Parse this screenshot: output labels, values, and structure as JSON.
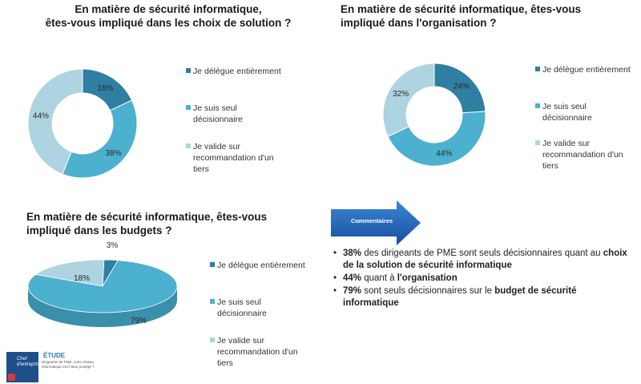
{
  "charts": {
    "c1": {
      "title_lines": [
        "En matière de sécurité informatique,",
        "êtes-vous impliqué dans les choix de solution ?"
      ],
      "legend": [
        "Je délègue entièrement",
        "Je suis seul décisionnaire",
        "Je valide sur recommandation d'un tiers"
      ]
    },
    "c2": {
      "title_lines": [
        "En matière de sécurité informatique, êtes-vous",
        "impliqué dans l'organisation ?"
      ],
      "legend": [
        "Je délègue entièrement",
        "Je suis seul décisionnaire",
        "Je valide sur recommandation d'un tiers"
      ]
    },
    "c3": {
      "title_lines": [
        "En matière de sécurité informatique, êtes-vous",
        "impliqué dans les budgets ?"
      ],
      "legend": [
        "Je délègue entièrement",
        "Je suis seul décisionnaire",
        "Je valide sur recommandation d'un tiers"
      ]
    }
  },
  "colors": {
    "delegue": "#2f7fa3",
    "seul": "#4cb0cf",
    "valide": "#aed3e1",
    "arrow": "#1e63b8"
  },
  "callout": {
    "label": "Commentaires"
  },
  "comments": [
    {
      "bold_pct": "38%",
      "text1": " des dirigeants de PME sont seuls décisionnaires quant au ",
      "bold2": "choix de la solution de sécurité informatique",
      "text2": ""
    },
    {
      "bold_pct": "44%",
      "text1": " quant à ",
      "bold2": "l'organisation",
      "text2": ""
    },
    {
      "bold_pct": "79%",
      "text1": " sont seuls décisionnaires sur le ",
      "bold2": "budget de sécurité informatique",
      "text2": ""
    }
  ],
  "logo": {
    "brand": "Chef d'entreprise",
    "title": "ÉTUDE",
    "subtitle": "Dirigeants de PME, votre réseau informatique est-il bien protégé ?"
  },
  "chart_data": [
    {
      "type": "pie",
      "title": "En matière de sécurité informatique, êtes-vous impliqué dans les choix de solution ?",
      "categories": [
        "Je délègue entièrement",
        "Je suis seul décisionnaire",
        "Je valide sur recommandation d'un tiers"
      ],
      "values": [
        18,
        38,
        44
      ],
      "labels": [
        "18%",
        "38%",
        "44%"
      ]
    },
    {
      "type": "pie",
      "title": "En matière de sécurité informatique, êtes-vous impliqué dans l'organisation ?",
      "categories": [
        "Je délègue entièrement",
        "Je suis seul décisionnaire",
        "Je valide sur recommandation d'un tiers"
      ],
      "values": [
        24,
        44,
        32
      ],
      "labels": [
        "24%",
        "44%",
        "32%"
      ]
    },
    {
      "type": "pie",
      "title": "En matière de sécurité informatique, êtes-vous impliqué dans les budgets ?",
      "categories": [
        "Je délègue entièrement",
        "Je suis seul décisionnaire",
        "Je valide sur recommandation d'un tiers"
      ],
      "values": [
        3,
        79,
        18
      ],
      "labels": [
        "3%",
        "79%",
        "18%"
      ]
    }
  ]
}
